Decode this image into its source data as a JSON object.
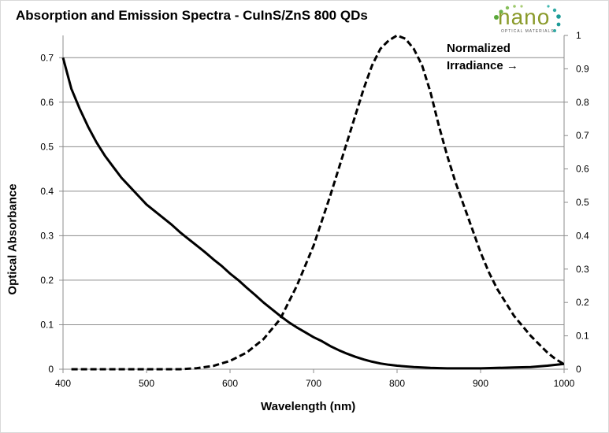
{
  "chart_data": {
    "type": "line",
    "title": "Absorption  and Emission  Spectra - CuInS/ZnS  800 QDs",
    "xlabel": "Wavelength (nm)",
    "ylabel": "Optical Absorbance",
    "y2_annotation_line1": "Normalized",
    "y2_annotation_line2": "Irradiance →",
    "xlim": [
      400,
      1000
    ],
    "ylim": [
      0,
      0.75
    ],
    "y2lim": [
      0,
      1
    ],
    "xticks": [
      "400",
      "500",
      "600",
      "700",
      "800",
      "900",
      "1000"
    ],
    "yticks": [
      "0",
      "0.1",
      "0.2",
      "0.3",
      "0.4",
      "0.5",
      "0.6",
      "0.7"
    ],
    "y2ticks": [
      "0",
      "0.1",
      "0.2",
      "0.3",
      "0.4",
      "0.5",
      "0.6",
      "0.7",
      "0.8",
      "0.9",
      "1"
    ],
    "grid": true,
    "series": [
      {
        "axis": "left",
        "style": "solid",
        "color": "#000000",
        "x": [
          400,
          410,
          420,
          430,
          440,
          450,
          460,
          470,
          480,
          490,
          500,
          510,
          520,
          530,
          540,
          550,
          560,
          570,
          580,
          590,
          600,
          610,
          620,
          630,
          640,
          650,
          660,
          670,
          680,
          690,
          700,
          710,
          720,
          730,
          740,
          750,
          760,
          770,
          780,
          790,
          800,
          820,
          840,
          860,
          880,
          900,
          920,
          940,
          960,
          980,
          1000
        ],
        "y": [
          0.7,
          0.63,
          0.585,
          0.545,
          0.51,
          0.48,
          0.455,
          0.43,
          0.41,
          0.39,
          0.37,
          0.355,
          0.34,
          0.325,
          0.308,
          0.293,
          0.278,
          0.263,
          0.247,
          0.232,
          0.215,
          0.2,
          0.183,
          0.167,
          0.15,
          0.135,
          0.12,
          0.106,
          0.094,
          0.083,
          0.072,
          0.063,
          0.052,
          0.043,
          0.035,
          0.028,
          0.022,
          0.017,
          0.013,
          0.01,
          0.008,
          0.005,
          0.003,
          0.002,
          0.002,
          0.002,
          0.003,
          0.004,
          0.005,
          0.008,
          0.012
        ]
      },
      {
        "axis": "right",
        "style": "dashed",
        "color": "#000000",
        "x": [
          410,
          450,
          500,
          540,
          560,
          580,
          600,
          620,
          640,
          660,
          680,
          700,
          720,
          740,
          760,
          770,
          780,
          790,
          800,
          810,
          820,
          830,
          840,
          850,
          860,
          870,
          880,
          890,
          900,
          910,
          920,
          930,
          940,
          950,
          960,
          970,
          980,
          990,
          1000
        ],
        "y": [
          0.0,
          0.0,
          0.0,
          0.0,
          0.003,
          0.01,
          0.025,
          0.05,
          0.09,
          0.15,
          0.25,
          0.37,
          0.52,
          0.68,
          0.84,
          0.91,
          0.96,
          0.985,
          1.0,
          0.99,
          0.96,
          0.91,
          0.83,
          0.73,
          0.64,
          0.56,
          0.49,
          0.42,
          0.35,
          0.29,
          0.24,
          0.2,
          0.16,
          0.13,
          0.1,
          0.075,
          0.05,
          0.03,
          0.015
        ]
      }
    ]
  },
  "logo": {
    "main": "nano",
    "sub": "OPTICAL MATERIALS"
  }
}
